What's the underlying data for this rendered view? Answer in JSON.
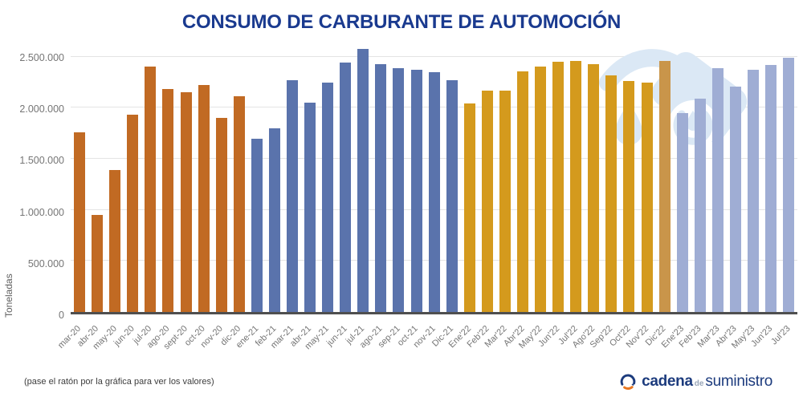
{
  "title": "CONSUMO DE CARBURANTE DE AUTOMOCIÓN",
  "footer": {
    "hint": "(pase el ratón por la gráfica para ver los valores)",
    "logo": {
      "word1": "cadena",
      "word2": "de",
      "word3": "suministro"
    }
  },
  "colors": {
    "title": "#1a3a8f",
    "gridline": "#e4e4e4",
    "baseline": "#4f4f4f",
    "tick_text": "#757575",
    "watermark": "#dbe8f5",
    "logo_blue": "#1c3b7d",
    "logo_orange": "#e87722"
  },
  "chart_data": {
    "type": "bar",
    "title": "CONSUMO DE CARBURANTE DE AUTOMOCIÓN",
    "xlabel": "",
    "ylabel": "Toneladas",
    "unit": "toneladas",
    "grid": true,
    "legend": "none",
    "ylim": [
      0,
      2600000
    ],
    "yticks": [
      0,
      500000,
      1000000,
      1500000,
      2000000,
      2500000
    ],
    "ytick_labels": [
      "0",
      "500.000",
      "1.000.000",
      "1.500.000",
      "2.000.000",
      "2.500.000"
    ],
    "group_colors": {
      "2020": "#c16a23",
      "2021": "#5a73ac",
      "2022": "#d49a1d",
      "2022-dic": "#c9954a",
      "2023": "#9fadd4"
    },
    "points": [
      {
        "label": "mar-20",
        "value": 1760000,
        "group": "2020"
      },
      {
        "label": "abr-20",
        "value": 950000,
        "group": "2020"
      },
      {
        "label": "may-20",
        "value": 1390000,
        "group": "2020"
      },
      {
        "label": "jun-20",
        "value": 1930000,
        "group": "2020"
      },
      {
        "label": "jul-20",
        "value": 2400000,
        "group": "2020"
      },
      {
        "label": "ago-20",
        "value": 2180000,
        "group": "2020"
      },
      {
        "label": "sept-20",
        "value": 2150000,
        "group": "2020"
      },
      {
        "label": "oct-20",
        "value": 2220000,
        "group": "2020"
      },
      {
        "label": "nov-20",
        "value": 1900000,
        "group": "2020"
      },
      {
        "label": "dic-20",
        "value": 2110000,
        "group": "2020"
      },
      {
        "label": "ene-21",
        "value": 1700000,
        "group": "2021"
      },
      {
        "label": "feb-21",
        "value": 1800000,
        "group": "2021"
      },
      {
        "label": "mar-21",
        "value": 2270000,
        "group": "2021"
      },
      {
        "label": "abr-21",
        "value": 2050000,
        "group": "2021"
      },
      {
        "label": "may-21",
        "value": 2250000,
        "group": "2021"
      },
      {
        "label": "jun-21",
        "value": 2440000,
        "group": "2021"
      },
      {
        "label": "jul-21",
        "value": 2580000,
        "group": "2021"
      },
      {
        "label": "ago-21",
        "value": 2430000,
        "group": "2021"
      },
      {
        "label": "sep-21",
        "value": 2390000,
        "group": "2021"
      },
      {
        "label": "oct-21",
        "value": 2370000,
        "group": "2021"
      },
      {
        "label": "nov-21",
        "value": 2350000,
        "group": "2021"
      },
      {
        "label": "Dic-21",
        "value": 2270000,
        "group": "2021"
      },
      {
        "label": "Ene'22",
        "value": 2040000,
        "group": "2022"
      },
      {
        "label": "Feb'22",
        "value": 2170000,
        "group": "2022"
      },
      {
        "label": "Mar'22",
        "value": 2170000,
        "group": "2022"
      },
      {
        "label": "Abr'22",
        "value": 2360000,
        "group": "2022"
      },
      {
        "label": "May'22",
        "value": 2400000,
        "group": "2022"
      },
      {
        "label": "Jun'22",
        "value": 2450000,
        "group": "2022"
      },
      {
        "label": "Jul'22",
        "value": 2460000,
        "group": "2022"
      },
      {
        "label": "Ago'22",
        "value": 2430000,
        "group": "2022"
      },
      {
        "label": "Sep'22",
        "value": 2320000,
        "group": "2022"
      },
      {
        "label": "Oct'22",
        "value": 2260000,
        "group": "2022"
      },
      {
        "label": "Nov'22",
        "value": 2250000,
        "group": "2022"
      },
      {
        "label": "Dic'22",
        "value": 2460000,
        "group": "2022-dic"
      },
      {
        "label": "Ene'23",
        "value": 1950000,
        "group": "2023"
      },
      {
        "label": "Feb'23",
        "value": 2090000,
        "group": "2023"
      },
      {
        "label": "Mar'23",
        "value": 2390000,
        "group": "2023"
      },
      {
        "label": "Abr'23",
        "value": 2210000,
        "group": "2023"
      },
      {
        "label": "May'23",
        "value": 2370000,
        "group": "2023"
      },
      {
        "label": "Jun'23",
        "value": 2420000,
        "group": "2023"
      },
      {
        "label": "Jul'23",
        "value": 2490000,
        "group": "2023"
      }
    ]
  }
}
